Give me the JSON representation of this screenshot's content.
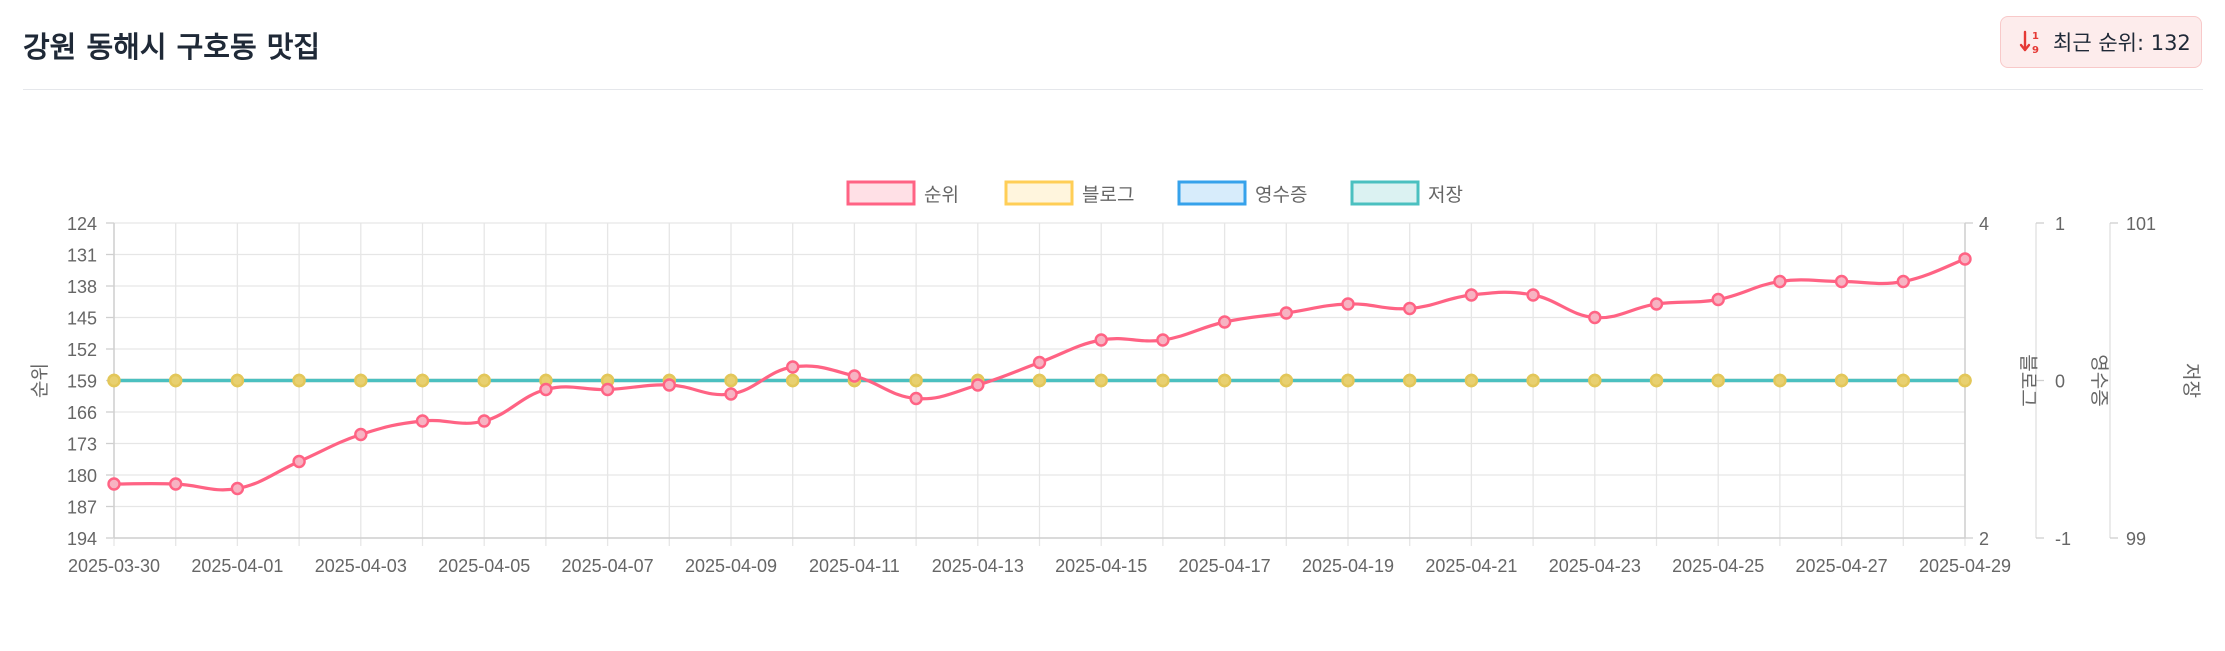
{
  "header": {
    "title": "강원 동해시 구호동 맛집",
    "badge": {
      "icon": "sort-arrows-icon",
      "text": "최근 순위: 132",
      "icon_color": "#e53935"
    }
  },
  "chart_data": {
    "type": "line",
    "x": [
      "2025-03-30",
      "2025-03-31",
      "2025-04-01",
      "2025-04-02",
      "2025-04-03",
      "2025-04-04",
      "2025-04-05",
      "2025-04-06",
      "2025-04-07",
      "2025-04-08",
      "2025-04-09",
      "2025-04-10",
      "2025-04-11",
      "2025-04-12",
      "2025-04-13",
      "2025-04-14",
      "2025-04-15",
      "2025-04-16",
      "2025-04-17",
      "2025-04-18",
      "2025-04-19",
      "2025-04-20",
      "2025-04-21",
      "2025-04-22",
      "2025-04-23",
      "2025-04-24",
      "2025-04-25",
      "2025-04-26",
      "2025-04-27",
      "2025-04-28",
      "2025-04-29"
    ],
    "x_tick_labels": [
      "2025-03-30",
      "2025-04-01",
      "2025-04-03",
      "2025-04-05",
      "2025-04-07",
      "2025-04-09",
      "2025-04-11",
      "2025-04-13",
      "2025-04-15",
      "2025-04-17",
      "2025-04-19",
      "2025-04-21",
      "2025-04-23",
      "2025-04-25",
      "2025-04-27",
      "2025-04-29"
    ],
    "legend": {
      "position": "top",
      "entries": [
        {
          "label": "순위",
          "color": "#ff6384",
          "fill": "#ffe0e6"
        },
        {
          "label": "블로그",
          "color": "#ffce56",
          "fill": "#fff5dd"
        },
        {
          "label": "영수증",
          "color": "#36a2eb",
          "fill": "#d7ecfb"
        },
        {
          "label": "저장",
          "color": "#4bc0c0",
          "fill": "#dbf2f2"
        }
      ]
    },
    "axes": {
      "rank": {
        "label": "순위",
        "position": "left",
        "reversed": true,
        "range": [
          124,
          194
        ],
        "ticks": [
          124,
          131,
          138,
          145,
          152,
          159,
          166,
          173,
          180,
          187,
          194
        ]
      },
      "blog": {
        "label": "블로그",
        "position": "right",
        "range": [
          2,
          4
        ],
        "ticks": [
          4,
          2
        ]
      },
      "receipt": {
        "label": "영수증",
        "position": "right",
        "range": [
          -1,
          1
        ],
        "ticks": [
          1,
          0,
          -1
        ]
      },
      "save": {
        "label": "저장",
        "position": "right",
        "range": [
          99,
          101
        ],
        "ticks": [
          101,
          99
        ]
      }
    },
    "grid": true,
    "series": [
      {
        "name": "순위",
        "axis": "rank",
        "color": "#ff6384",
        "values": [
          182,
          182,
          183,
          177,
          171,
          168,
          168,
          161,
          161,
          160,
          162,
          156,
          158,
          163,
          160,
          155,
          150,
          150,
          146,
          144,
          142,
          143,
          140,
          140,
          145,
          142,
          141,
          137,
          137,
          137,
          132
        ]
      },
      {
        "name": "블로그",
        "axis": "blog",
        "color": "#ffce56",
        "values": [
          3,
          3,
          3,
          3,
          3,
          3,
          3,
          3,
          3,
          3,
          3,
          3,
          3,
          3,
          3,
          3,
          3,
          3,
          3,
          3,
          3,
          3,
          3,
          3,
          3,
          3,
          3,
          3,
          3,
          3,
          3
        ]
      },
      {
        "name": "영수증",
        "axis": "receipt",
        "color": "#36a2eb",
        "values": [
          0,
          0,
          0,
          0,
          0,
          0,
          0,
          0,
          0,
          0,
          0,
          0,
          0,
          0,
          0,
          0,
          0,
          0,
          0,
          0,
          0,
          0,
          0,
          0,
          0,
          0,
          0,
          0,
          0,
          0,
          0
        ]
      },
      {
        "name": "저장",
        "axis": "save",
        "color": "#4bc0c0",
        "values": [
          100,
          100,
          100,
          100,
          100,
          100,
          100,
          100,
          100,
          100,
          100,
          100,
          100,
          100,
          100,
          100,
          100,
          100,
          100,
          100,
          100,
          100,
          100,
          100,
          100,
          100,
          100,
          100,
          100,
          100,
          100
        ]
      }
    ]
  }
}
